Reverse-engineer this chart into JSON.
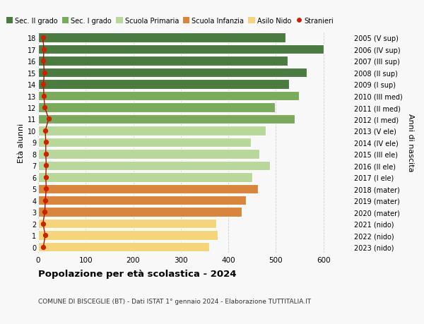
{
  "ages": [
    18,
    17,
    16,
    15,
    14,
    13,
    12,
    11,
    10,
    9,
    8,
    7,
    6,
    5,
    4,
    3,
    2,
    1,
    0
  ],
  "right_labels": [
    "2005 (V sup)",
    "2006 (IV sup)",
    "2007 (III sup)",
    "2008 (II sup)",
    "2009 (I sup)",
    "2010 (III med)",
    "2011 (II med)",
    "2012 (I med)",
    "2013 (V ele)",
    "2014 (IV ele)",
    "2015 (III ele)",
    "2016 (II ele)",
    "2017 (I ele)",
    "2018 (mater)",
    "2019 (mater)",
    "2020 (mater)",
    "2021 (nido)",
    "2022 (nido)",
    "2023 (nido)"
  ],
  "bar_values": [
    520,
    600,
    525,
    565,
    527,
    548,
    498,
    540,
    478,
    448,
    465,
    487,
    450,
    462,
    437,
    428,
    375,
    378,
    360
  ],
  "stranieri_values": [
    10,
    12,
    11,
    13,
    11,
    12,
    14,
    22,
    15,
    16,
    16,
    17,
    16,
    17,
    15,
    14,
    10,
    15,
    11
  ],
  "bar_colors": [
    "#4a7c3f",
    "#4a7c3f",
    "#4a7c3f",
    "#4a7c3f",
    "#4a7c3f",
    "#7aab5a",
    "#7aab5a",
    "#7aab5a",
    "#b8d89a",
    "#b8d89a",
    "#b8d89a",
    "#b8d89a",
    "#b8d89a",
    "#d9863c",
    "#d9863c",
    "#d9863c",
    "#f5d57a",
    "#f5d57a",
    "#f5d57a"
  ],
  "legend_labels": [
    "Sec. II grado",
    "Sec. I grado",
    "Scuola Primaria",
    "Scuola Infanzia",
    "Asilo Nido",
    "Stranieri"
  ],
  "legend_colors": [
    "#4a7c3f",
    "#7aab5a",
    "#b8d89a",
    "#d9863c",
    "#f5d57a",
    "#cc2200"
  ],
  "title": "Popolazione per età scolastica - 2024",
  "subtitle": "COMUNE DI BISCEGLIE (BT) - Dati ISTAT 1° gennaio 2024 - Elaborazione TUTTITALIA.IT",
  "ylabel_left": "Età alunni",
  "ylabel_right": "Anni di nascita",
  "xlim": [
    0,
    660
  ],
  "background_color": "#f8f8f8",
  "grid_color": "#cccccc",
  "stranieri_color": "#cc2200",
  "stranieri_line_color": "#aa1111"
}
